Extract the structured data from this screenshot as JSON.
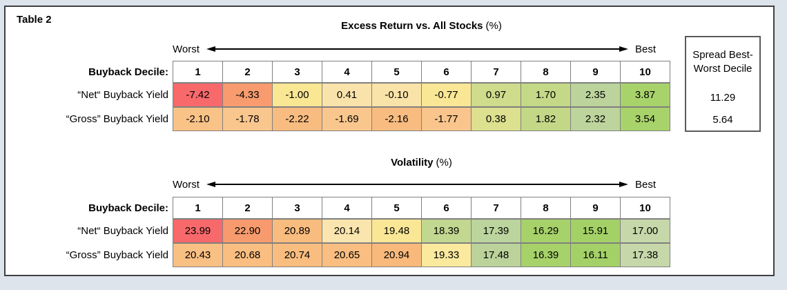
{
  "figure": {
    "label": "Table 2"
  },
  "colors": {
    "frame_border": "#404040",
    "outer_margin": "#DDE4EC",
    "grid_line": "#7F7F7F",
    "spread_border": "#595959",
    "scale_red": "#F8696B",
    "scale_yellow": "#FAE795",
    "scale_green": "#A5D266"
  },
  "panels": [
    {
      "title_bold": "Excess Return vs. All Stocks",
      "title_suffix": "(%)",
      "worst_label": "Worst",
      "best_label": "Best",
      "header_label": "Buyback Decile:",
      "deciles": [
        "1",
        "2",
        "3",
        "4",
        "5",
        "6",
        "7",
        "8",
        "9",
        "10"
      ],
      "rows": [
        {
          "label": "“Net“ Buyback Yield",
          "cells": [
            {
              "v": "-7.42",
              "bg": "#F8696B"
            },
            {
              "v": "-4.33",
              "bg": "#F89B6E"
            },
            {
              "v": "-1.00",
              "bg": "#FAE793"
            },
            {
              "v": "0.41",
              "bg": "#FAE3AA"
            },
            {
              "v": "-0.10",
              "bg": "#FAE3A8"
            },
            {
              "v": "-0.77",
              "bg": "#FAE795"
            },
            {
              "v": "0.97",
              "bg": "#CEDC8B"
            },
            {
              "v": "1.70",
              "bg": "#C4D987"
            },
            {
              "v": "2.35",
              "bg": "#BCD49C"
            },
            {
              "v": "3.87",
              "bg": "#A8D36B"
            }
          ]
        },
        {
          "label": "“Gross” Buyback Yield",
          "cells": [
            {
              "v": "-2.10",
              "bg": "#F9C287"
            },
            {
              "v": "-1.78",
              "bg": "#F9C68D"
            },
            {
              "v": "-2.22",
              "bg": "#F8BB80"
            },
            {
              "v": "-1.69",
              "bg": "#F9C78E"
            },
            {
              "v": "-2.16",
              "bg": "#F8BC81"
            },
            {
              "v": "-1.77",
              "bg": "#F9C58C"
            },
            {
              "v": "0.38",
              "bg": "#DCE08F"
            },
            {
              "v": "1.82",
              "bg": "#C3D886"
            },
            {
              "v": "2.32",
              "bg": "#BDD49D"
            },
            {
              "v": "3.54",
              "bg": "#A8D36B"
            }
          ]
        }
      ]
    },
    {
      "title_bold": "Volatility",
      "title_suffix": "(%)",
      "worst_label": "Worst",
      "best_label": "Best",
      "header_label": "Buyback Decile:",
      "deciles": [
        "1",
        "2",
        "3",
        "4",
        "5",
        "6",
        "7",
        "8",
        "9",
        "10"
      ],
      "rows": [
        {
          "label": "“Net“ Buyback Yield",
          "cells": [
            {
              "v": "23.99",
              "bg": "#F8696B"
            },
            {
              "v": "22.90",
              "bg": "#F79A6D"
            },
            {
              "v": "20.89",
              "bg": "#F8BC7E"
            },
            {
              "v": "20.14",
              "bg": "#FAE5AE"
            },
            {
              "v": "19.48",
              "bg": "#FAE795"
            },
            {
              "v": "18.39",
              "bg": "#C2D78F"
            },
            {
              "v": "17.39",
              "bg": "#BCD49D"
            },
            {
              "v": "16.29",
              "bg": "#A6D269"
            },
            {
              "v": "15.91",
              "bg": "#A3D166"
            },
            {
              "v": "17.00",
              "bg": "#C6D8A9"
            }
          ]
        },
        {
          "label": "“Gross” Buyback Yield",
          "cells": [
            {
              "v": "20.43",
              "bg": "#F9C083"
            },
            {
              "v": "20.68",
              "bg": "#F9BE80"
            },
            {
              "v": "20.74",
              "bg": "#F9BD7F"
            },
            {
              "v": "20.65",
              "bg": "#F9BE80"
            },
            {
              "v": "20.94",
              "bg": "#F8B97B"
            },
            {
              "v": "19.33",
              "bg": "#FBE99E"
            },
            {
              "v": "17.48",
              "bg": "#BBD39B"
            },
            {
              "v": "16.39",
              "bg": "#A6D269"
            },
            {
              "v": "16.11",
              "bg": "#A4D167"
            },
            {
              "v": "17.38",
              "bg": "#C6D8A9"
            }
          ]
        }
      ]
    }
  ],
  "spread": {
    "header": "Spread Best-Worst Decile",
    "values": [
      {
        "v": "11.29",
        "bg": "#A5D266"
      },
      {
        "v": "5.64",
        "bg": "#F87F81"
      }
    ]
  },
  "chart_data": [
    {
      "type": "heatmap",
      "title": "Excess Return vs. All Stocks (%)",
      "xlabel": "Buyback Decile",
      "categories": [
        "1",
        "2",
        "3",
        "4",
        "5",
        "6",
        "7",
        "8",
        "9",
        "10"
      ],
      "axis_annotations": [
        "Worst",
        "Best"
      ],
      "series": [
        {
          "name": "“Net“ Buyback Yield",
          "values": [
            -7.42,
            -4.33,
            -1.0,
            0.41,
            -0.1,
            -0.77,
            0.97,
            1.7,
            2.35,
            3.87
          ]
        },
        {
          "name": "“Gross” Buyback Yield",
          "values": [
            -2.1,
            -1.78,
            -2.22,
            -1.69,
            -2.16,
            -1.77,
            0.38,
            1.82,
            2.32,
            3.54
          ]
        }
      ],
      "spread_best_worst_decile": {
        "net": 11.29,
        "gross": 5.64
      }
    },
    {
      "type": "heatmap",
      "title": "Volatility (%)",
      "xlabel": "Buyback Decile",
      "categories": [
        "1",
        "2",
        "3",
        "4",
        "5",
        "6",
        "7",
        "8",
        "9",
        "10"
      ],
      "axis_annotations": [
        "Worst",
        "Best"
      ],
      "series": [
        {
          "name": "“Net“ Buyback Yield",
          "values": [
            23.99,
            22.9,
            20.89,
            20.14,
            19.48,
            18.39,
            17.39,
            16.29,
            15.91,
            17.0
          ]
        },
        {
          "name": "“Gross” Buyback Yield",
          "values": [
            20.43,
            20.68,
            20.74,
            20.65,
            20.94,
            19.33,
            17.48,
            16.39,
            16.11,
            17.38
          ]
        }
      ]
    }
  ]
}
